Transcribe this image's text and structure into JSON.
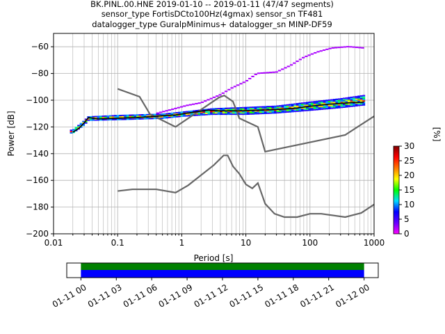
{
  "title_lines": [
    "BK.PINL.00.HNE   2019-01-10 -- 2019-01-11  (47/47 segments)",
    "sensor_type FortisDCto100Hz(4gmax) sensor_sn TF481",
    "datalogger_type GuralpMinimus+ datalogger_sn MINP-DF59"
  ],
  "chart_data": [
    {
      "type": "heatmap",
      "xlabel": "Period [s]",
      "ylabel": "Power [dB]",
      "xscale": "log",
      "xlim": [
        0.01,
        1000
      ],
      "ylim": [
        -200,
        -50
      ],
      "xticks": [
        0.01,
        0.1,
        1,
        10,
        100,
        1000
      ],
      "xtick_labels": [
        "0.01",
        "0.1",
        "1",
        "10",
        "100",
        "1000"
      ],
      "yticks": [
        -200,
        -180,
        -160,
        -140,
        -120,
        -100,
        -80,
        -60
      ],
      "ytick_labels": [
        "−200",
        "−180",
        "−160",
        "−140",
        "−120",
        "−100",
        "−80",
        "−60"
      ],
      "grid": true,
      "colorbar": {
        "label": "[%]",
        "range": [
          0,
          30
        ],
        "ticks": [
          0,
          5,
          10,
          15,
          20,
          25,
          30
        ],
        "tick_labels": [
          "0",
          "5",
          "10",
          "15",
          "20",
          "25",
          "30"
        ],
        "colormap": [
          "#ff00ff",
          "#6600ff",
          "#0000ff",
          "#00ddff",
          "#00ff00",
          "#ffff00",
          "#ff7700",
          "#ff0000",
          "#800000"
        ]
      },
      "noise_models": [
        {
          "name": "NHNM",
          "color": "#666666",
          "points": [
            [
              0.1,
              -91.5
            ],
            [
              0.22,
              -97.4
            ],
            [
              0.32,
              -110.5
            ],
            [
              0.8,
              -120
            ],
            [
              3.8,
              -98
            ],
            [
              4.6,
              -96.5
            ],
            [
              6.3,
              -101
            ],
            [
              7.9,
              -113.5
            ],
            [
              15.4,
              -120
            ],
            [
              20,
              -138.5
            ],
            [
              354.8,
              -126
            ],
            [
              1000,
              -112
            ]
          ]
        },
        {
          "name": "NLNM",
          "color": "#666666",
          "points": [
            [
              0.1,
              -168
            ],
            [
              0.17,
              -166.7
            ],
            [
              0.4,
              -166.7
            ],
            [
              0.8,
              -169.2
            ],
            [
              1.26,
              -163.7
            ],
            [
              3.16,
              -148.6
            ],
            [
              4.5,
              -141.3
            ],
            [
              5.2,
              -141.3
            ],
            [
              6.3,
              -149.5
            ],
            [
              7.9,
              -155
            ],
            [
              10,
              -163
            ],
            [
              12.6,
              -166
            ],
            [
              15.4,
              -162
            ],
            [
              20,
              -177.5
            ],
            [
              28,
              -185
            ],
            [
              40,
              -187.5
            ],
            [
              63,
              -187.5
            ],
            [
              100,
              -185
            ],
            [
              150,
              -185
            ],
            [
              354.8,
              -187.5
            ],
            [
              630,
              -184.4
            ],
            [
              1000,
              -178
            ]
          ]
        }
      ],
      "mode_curve": {
        "color": "#000000",
        "points": [
          [
            0.02,
            -124
          ],
          [
            0.025,
            -121
          ],
          [
            0.03,
            -117
          ],
          [
            0.035,
            -113
          ],
          [
            0.05,
            -114
          ],
          [
            0.1,
            -113.5
          ],
          [
            0.2,
            -113
          ],
          [
            0.4,
            -112
          ],
          [
            0.8,
            -111
          ],
          [
            1.5,
            -109
          ],
          [
            2.5,
            -107.5
          ],
          [
            4,
            -108
          ],
          [
            8,
            -108
          ],
          [
            15,
            -107.5
          ],
          [
            30,
            -107
          ],
          [
            60,
            -106
          ],
          [
            100,
            -104.5
          ],
          [
            200,
            -103
          ],
          [
            400,
            -102
          ],
          [
            700,
            -101.5
          ]
        ]
      },
      "mode_lower_edge": [
        [
          0.02,
          -125
        ],
        [
          0.03,
          -119
        ],
        [
          0.035,
          -115.5
        ],
        [
          0.1,
          -115
        ],
        [
          0.5,
          -114
        ],
        [
          1,
          -112.5
        ],
        [
          3,
          -111
        ],
        [
          10,
          -111
        ],
        [
          30,
          -110
        ],
        [
          100,
          -108
        ],
        [
          300,
          -106
        ],
        [
          700,
          -104
        ]
      ],
      "mode_upper_edge": [
        [
          0.02,
          -122
        ],
        [
          0.03,
          -115
        ],
        [
          0.035,
          -112
        ],
        [
          0.1,
          -111
        ],
        [
          0.5,
          -110
        ],
        [
          1,
          -108.5
        ],
        [
          3,
          -106
        ],
        [
          10,
          -105
        ],
        [
          30,
          -104
        ],
        [
          100,
          -101
        ],
        [
          300,
          -98.5
        ],
        [
          700,
          -96
        ]
      ],
      "outlier_curve": {
        "color": "#aa00ff",
        "points": [
          [
            0.4,
            -110
          ],
          [
            0.7,
            -107
          ],
          [
            1.2,
            -104
          ],
          [
            2,
            -102
          ],
          [
            4,
            -96
          ],
          [
            6,
            -91
          ],
          [
            10,
            -86
          ],
          [
            15,
            -80
          ],
          [
            30,
            -79
          ],
          [
            50,
            -74
          ],
          [
            80,
            -68
          ],
          [
            130,
            -64
          ],
          [
            220,
            -61
          ],
          [
            400,
            -60
          ],
          [
            700,
            -61
          ]
        ]
      }
    },
    {
      "type": "timeline",
      "x_tick_labels": [
        "01-11 00",
        "01-11 03",
        "01-11 06",
        "01-11 09",
        "01-11 12",
        "01-11 15",
        "01-11 18",
        "01-11 21",
        "01-12 00"
      ],
      "x_range_hours": [
        -1.2,
        25.2
      ],
      "coverage": [
        {
          "name": "data",
          "color": "#008000",
          "start_hours": 0,
          "end_hours": 24
        },
        {
          "name": "psd",
          "color": "#0000ff",
          "start_hours": 0,
          "end_hours": 24
        }
      ]
    }
  ]
}
